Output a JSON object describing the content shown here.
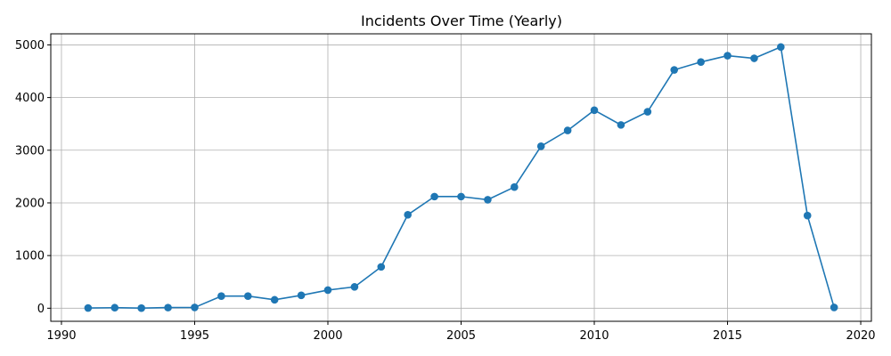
{
  "chart_data": {
    "type": "line",
    "title": "Incidents Over Time (Yearly)",
    "xlabel": "",
    "ylabel": "",
    "xlim": [
      1989.6,
      2020.4
    ],
    "ylim": [
      -248,
      5210
    ],
    "x_ticks": [
      1990,
      1995,
      2000,
      2005,
      2010,
      2015,
      2020
    ],
    "y_ticks": [
      0,
      1000,
      2000,
      3000,
      4000,
      5000
    ],
    "grid": true,
    "colors": {
      "line": "#1f77b4",
      "grid": "#b0b0b0",
      "axis": "#000000"
    },
    "series": [
      {
        "x": [
          1991,
          1992,
          1993,
          1994,
          1995,
          1996,
          1997,
          1998,
          1999,
          2000,
          2001,
          2002,
          2003,
          2004,
          2005,
          2006,
          2007,
          2008,
          2009,
          2010,
          2011,
          2012,
          2013,
          2014,
          2015,
          2016,
          2017,
          2018,
          2019
        ],
        "values": [
          5,
          10,
          2,
          12,
          15,
          230,
          230,
          160,
          245,
          345,
          405,
          785,
          1775,
          2120,
          2120,
          2060,
          2300,
          3075,
          3375,
          3760,
          3480,
          3730,
          4525,
          4675,
          4795,
          4745,
          4960,
          1760,
          15
        ]
      }
    ]
  }
}
